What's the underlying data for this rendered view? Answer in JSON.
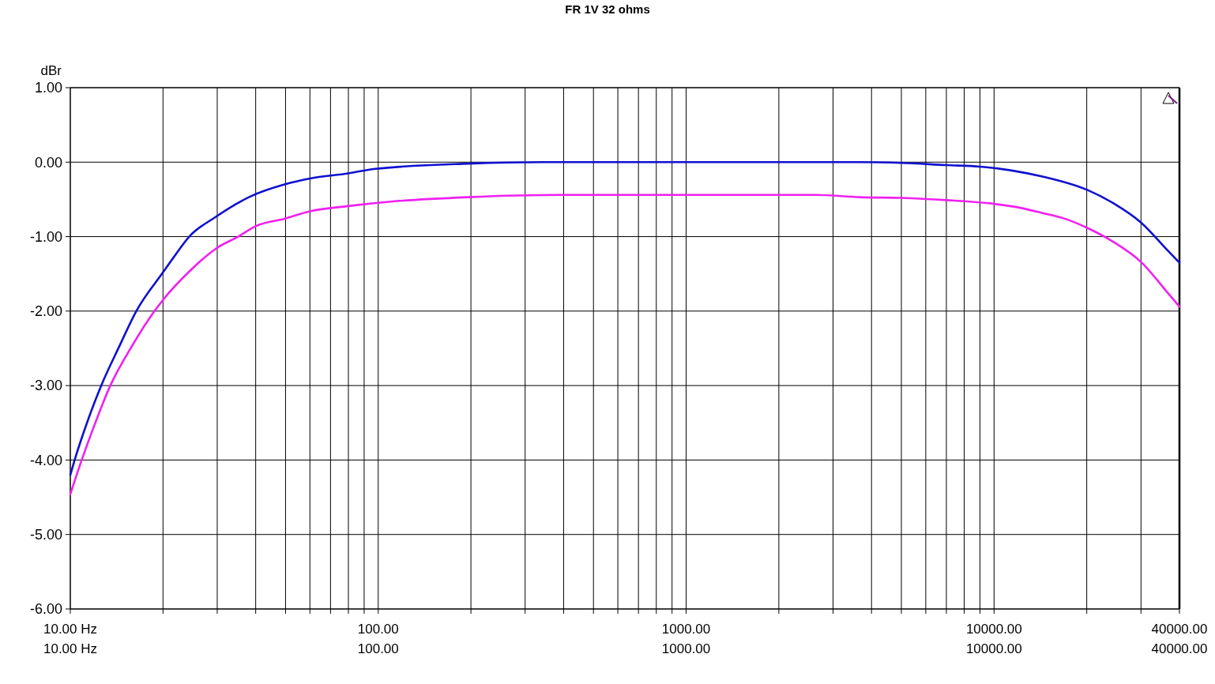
{
  "chart_data": {
    "type": "line",
    "title": "FR 1V 32 ohms",
    "ylabel": "dBr",
    "log": "x",
    "grid": true,
    "line_style": "solid",
    "xlim": [
      10,
      40000
    ],
    "ylim": [
      -6,
      1
    ],
    "xticks": [
      {
        "value": 10,
        "label": "10.00 Hz"
      },
      {
        "value": 20,
        "label": null
      },
      {
        "value": 30,
        "label": null
      },
      {
        "value": 40,
        "label": null
      },
      {
        "value": 50,
        "label": null
      },
      {
        "value": 60,
        "label": null
      },
      {
        "value": 70,
        "label": null
      },
      {
        "value": 80,
        "label": null
      },
      {
        "value": 90,
        "label": null
      },
      {
        "value": 100,
        "label": "100.00"
      },
      {
        "value": 200,
        "label": null
      },
      {
        "value": 300,
        "label": null
      },
      {
        "value": 400,
        "label": null
      },
      {
        "value": 500,
        "label": null
      },
      {
        "value": 600,
        "label": null
      },
      {
        "value": 700,
        "label": null
      },
      {
        "value": 800,
        "label": null
      },
      {
        "value": 900,
        "label": null
      },
      {
        "value": 1000,
        "label": "1000.00"
      },
      {
        "value": 2000,
        "label": null
      },
      {
        "value": 3000,
        "label": null
      },
      {
        "value": 4000,
        "label": null
      },
      {
        "value": 5000,
        "label": null
      },
      {
        "value": 6000,
        "label": null
      },
      {
        "value": 7000,
        "label": null
      },
      {
        "value": 8000,
        "label": null
      },
      {
        "value": 9000,
        "label": null
      },
      {
        "value": 10000,
        "label": "10000.00"
      },
      {
        "value": 20000,
        "label": null
      },
      {
        "value": 30000,
        "label": null
      },
      {
        "value": 40000,
        "label": "40000.00"
      }
    ],
    "yticks": [
      {
        "value": -6,
        "label": "-6.00"
      },
      {
        "value": -5,
        "label": "-5.00"
      },
      {
        "value": -4,
        "label": "-4.00"
      },
      {
        "value": -3,
        "label": "-3.00"
      },
      {
        "value": -2,
        "label": "-2.00"
      },
      {
        "value": -1,
        "label": "-1.00"
      },
      {
        "value": 0,
        "label": "0.00"
      },
      {
        "value": 1,
        "label": "1.00"
      }
    ],
    "series": [
      {
        "color": "#1010d0",
        "x": [
          10,
          10.33,
          11.33,
          12.6,
          14.44,
          16.38,
          20,
          21.3,
          24.6,
          29.3,
          38.5,
          49.6,
          60,
          80,
          97.7,
          197,
          346,
          1000,
          3650,
          5000,
          7000,
          9000,
          10000,
          11700,
          14260,
          20000,
          24600,
          30000,
          36900,
          40000
        ],
        "values": [
          -4.2,
          -4.0,
          -3.5,
          -3.0,
          -2.47,
          -2.0,
          -1.48,
          -1.32,
          -0.98,
          -0.75,
          -0.46,
          -0.3,
          -0.22,
          -0.15,
          -0.09,
          -0.02,
          0.0,
          0.0,
          0.0,
          -0.01,
          -0.04,
          -0.06,
          -0.08,
          -0.12,
          -0.19,
          -0.37,
          -0.56,
          -0.81,
          -1.2,
          -1.35
        ]
      },
      {
        "color": "#f020f0",
        "x": [
          10,
          10.89,
          11.88,
          13.49,
          15.91,
          18.77,
          20,
          24.6,
          30,
          35.1,
          40,
          49.6,
          60,
          80,
          110,
          197,
          397,
          1000,
          2620,
          3650,
          5000,
          7000,
          10000,
          11700,
          14260,
          17260,
          20000,
          24600,
          30000,
          36900,
          40000
        ],
        "values": [
          -4.46,
          -4.0,
          -3.57,
          -3.0,
          -2.46,
          -2.0,
          -1.85,
          -1.45,
          -1.15,
          -1.0,
          -0.86,
          -0.76,
          -0.66,
          -0.59,
          -0.53,
          -0.47,
          -0.44,
          -0.44,
          -0.44,
          -0.47,
          -0.48,
          -0.51,
          -0.56,
          -0.6,
          -0.68,
          -0.77,
          -0.88,
          -1.08,
          -1.34,
          -1.77,
          -1.94
        ]
      }
    ]
  }
}
